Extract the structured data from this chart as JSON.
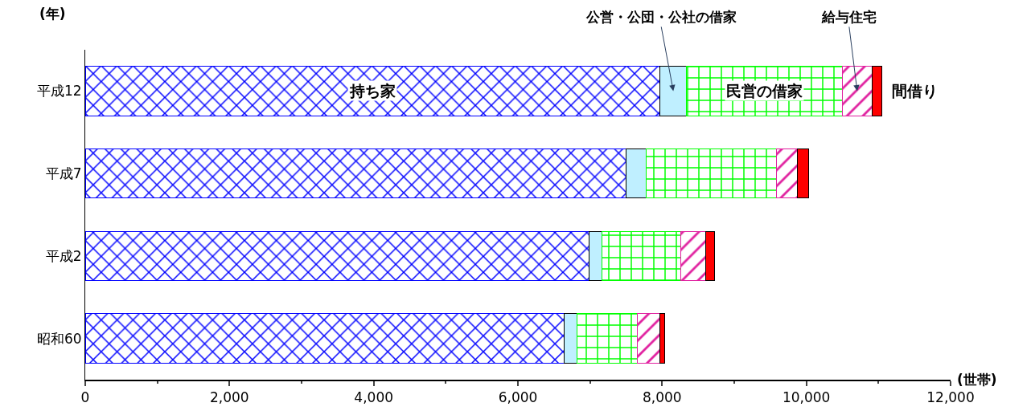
{
  "chart_data": {
    "type": "bar",
    "orientation": "horizontal",
    "stacked": true,
    "categories": [
      "平成12",
      "平成7",
      "平成2",
      "昭和60"
    ],
    "ylabel": "(年)",
    "xlabel": "(世帯)",
    "series": [
      {
        "name": "持ち家",
        "color": "#0000ff",
        "values": [
          7970,
          7500,
          6990,
          6640
        ]
      },
      {
        "name": "公営・公団・公社の借家",
        "color": "#bfefff",
        "values": [
          370,
          280,
          180,
          180
        ]
      },
      {
        "name": "民営の借家",
        "color": "#00ff00",
        "values": [
          2160,
          1800,
          1090,
          840
        ]
      },
      {
        "name": "給与住宅",
        "color": "#e0209f",
        "values": [
          410,
          300,
          340,
          310
        ]
      },
      {
        "name": "間借り",
        "color": "#ff0000",
        "values": [
          140,
          150,
          130,
          60
        ]
      }
    ],
    "xlim": [
      0,
      12000
    ],
    "xticks": [
      0,
      {
        "value": 2000,
        "label": "2,000"
      },
      {
        "value": 4000,
        "label": "4,000"
      },
      {
        "value": 6000,
        "label": "6,000"
      },
      {
        "value": 8000,
        "label": "8,000"
      },
      {
        "value": 10000,
        "label": "10,000"
      },
      {
        "value": 12000,
        "label": "12,000"
      }
    ],
    "legend": false
  }
}
